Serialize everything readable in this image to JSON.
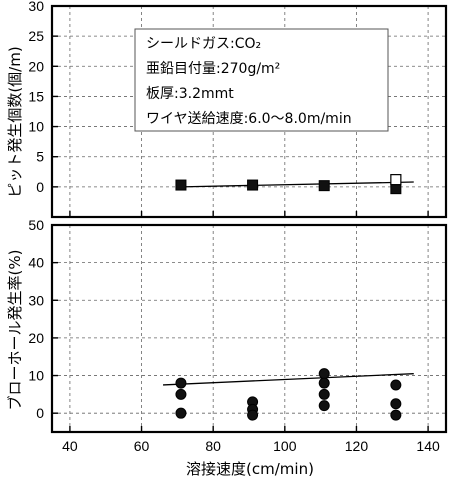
{
  "chart_data": {
    "type": "scatter",
    "xlabel": "溶接速度(cm/min)",
    "x_range": [
      35,
      145
    ],
    "x_ticks": [
      40,
      60,
      80,
      100,
      120,
      140
    ],
    "annotation_lines": [
      "シールドガス:CO₂",
      "亜鉛目付量:270g/m²",
      "板厚:3.2mmt",
      "ワイヤ送給速度:6.0〜8.0m/min"
    ],
    "panels": [
      {
        "id": "top",
        "ylabel": "ピット発生個数(個/m)",
        "y_range": [
          -5,
          30
        ],
        "y_ticks": [
          0,
          5,
          10,
          15,
          20,
          25,
          30
        ],
        "series": [
          {
            "marker": "filled-square",
            "points": [
              [
                71,
                0.3
              ],
              [
                91,
                0.3
              ],
              [
                111,
                0.2
              ],
              [
                131,
                -0.3
              ]
            ]
          },
          {
            "marker": "open-square",
            "points": [
              [
                131,
                1.2
              ]
            ]
          }
        ],
        "fit_line": [
          [
            71,
            0.0
          ],
          [
            136,
            0.8
          ]
        ]
      },
      {
        "id": "bottom",
        "ylabel": "ブローホール発生率(%)",
        "y_range": [
          -5,
          50
        ],
        "y_ticks": [
          0,
          10,
          20,
          30,
          40,
          50
        ],
        "series": [
          {
            "marker": "filled-circle",
            "points": [
              [
                71,
                8
              ],
              [
                71,
                5
              ],
              [
                71,
                0
              ],
              [
                91,
                3
              ],
              [
                91,
                1
              ],
              [
                91,
                -0.5
              ],
              [
                111,
                10.5
              ],
              [
                111,
                8
              ],
              [
                111,
                5
              ],
              [
                111,
                2
              ],
              [
                131,
                7.5
              ],
              [
                131,
                2.5
              ],
              [
                131,
                -0.5
              ]
            ]
          }
        ],
        "fit_line": [
          [
            66,
            7.5
          ],
          [
            136,
            10.5
          ]
        ]
      }
    ]
  }
}
